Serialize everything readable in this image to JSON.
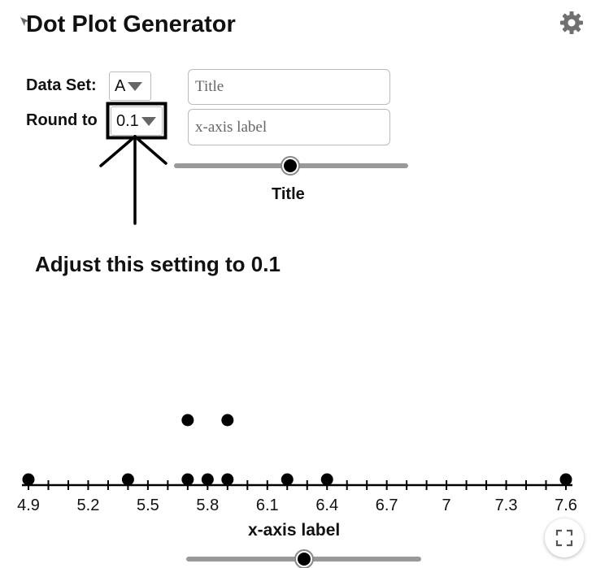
{
  "app": {
    "title": "Dot Plot Generator"
  },
  "controls": {
    "data_set_label": "Data Set:",
    "data_set_value": "A",
    "round_to_label": "Round to",
    "round_to_value": "0.1",
    "title_placeholder": "Title",
    "xaxis_placeholder": "x-axis label",
    "slider_label": "Title"
  },
  "annotation": {
    "text": "Adjust this setting to 0.1"
  },
  "icons": {
    "settings": "gear-icon",
    "fullscreen": "fullscreen-icon",
    "corner": "arrow-icon"
  },
  "colors": {
    "dot": "#000000",
    "slider_track": "#999999",
    "highlight_box": "#000000"
  },
  "chart_data": {
    "type": "scatter",
    "subtype": "dot-plot",
    "title": "",
    "xlabel": "x-axis label",
    "xlim": [
      4.9,
      7.6
    ],
    "minor_tick_step": 0.1,
    "tick_labels": [
      "4.9",
      "5.2",
      "5.5",
      "5.8",
      "6.1",
      "6.4",
      "6.7",
      "7",
      "7.3",
      "7.6"
    ],
    "points": [
      {
        "x": 4.9,
        "count": 1
      },
      {
        "x": 5.4,
        "count": 1
      },
      {
        "x": 5.7,
        "count": 2
      },
      {
        "x": 5.8,
        "count": 1
      },
      {
        "x": 5.9,
        "count": 2
      },
      {
        "x": 6.2,
        "count": 1
      },
      {
        "x": 6.4,
        "count": 1
      },
      {
        "x": 7.6,
        "count": 1
      }
    ]
  }
}
